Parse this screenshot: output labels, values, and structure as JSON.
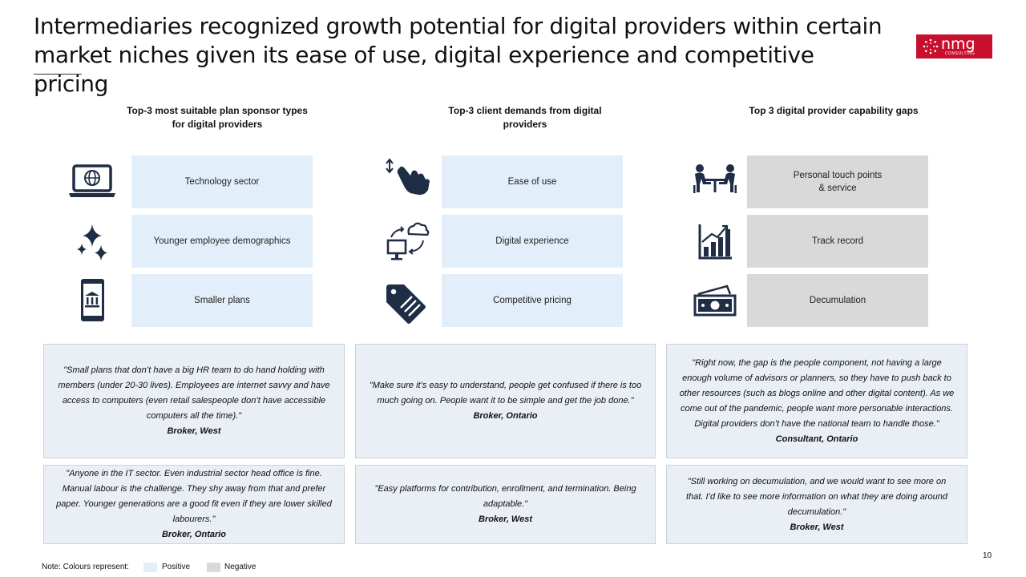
{
  "header": {
    "title_line1": "Intermediaries recognized growth potential for digital providers within certain",
    "title_line2": "market niches given its ease of use, digital experience and competitive pricing"
  },
  "logo": {
    "word": "nmg",
    "sub": "CONSULTING",
    "color": "#c8102e"
  },
  "columns": [
    {
      "heading_line1": "Top-3 most suitable plan sponsor types",
      "heading_line2": "for digital providers",
      "items": [
        {
          "label": "Technology sector",
          "icon": "laptop-globe-icon"
        },
        {
          "label": "Younger employee demographics",
          "icon": "sparkles-icon"
        },
        {
          "label": "Smaller plans",
          "icon": "phone-bank-icon"
        }
      ],
      "quotes": [
        {
          "text": "\"Small plans that don’t have a big HR team to do hand holding with members (under 20-30 lives). Employees are internet savvy and have access to computers (even retail salespeople don’t have accessible computers all the time).\"",
          "author": "Broker, West"
        },
        {
          "text": "\"Anyone in the IT sector. Even industrial sector head office is fine. Manual labour is the challenge. They shy away from that and prefer paper. Younger generations are a good fit even if they are lower skilled labourers.\"",
          "author": "Broker, Ontario"
        }
      ]
    },
    {
      "heading_line1": "Top-3 client demands from digital",
      "heading_line2": "providers",
      "items": [
        {
          "label": "Ease of use",
          "icon": "hand-tap-icon"
        },
        {
          "label": "Digital experience",
          "icon": "cloud-monitor-icon"
        },
        {
          "label": "Competitive pricing",
          "icon": "price-tag-icon"
        }
      ],
      "quotes": [
        {
          "text": "\"Make sure it’s easy to understand, people get confused if there is too much going on. People want it to be simple and get the job done.\"",
          "author": "Broker, Ontario"
        },
        {
          "text": "\"Easy platforms for contribution, enrollment, and termination. Being adaptable.\"",
          "author": "Broker, West"
        }
      ]
    },
    {
      "heading_line1": "Top 3 digital provider capability gaps",
      "heading_line2": "",
      "items": [
        {
          "label_line1": "Personal touch points",
          "label_line2": "& service",
          "icon": "meeting-table-icon"
        },
        {
          "label": "Track record",
          "icon": "bar-chart-icon"
        },
        {
          "label": "Decumulation",
          "icon": "cash-icon"
        }
      ],
      "quotes": [
        {
          "text": "\"Right now, the gap is the people component, not having a large enough volume of advisors or planners, so they have to push back to other resources (such as blogs online and other digital content). As we come out of the pandemic, people want more personable interactions. Digital providers don’t have the national team to handle those.\"",
          "author": "Consultant, Ontario"
        },
        {
          "text": "\"Still working on decumulation, and we would want to see more on that. I’d like to see more information on what they are doing around decumulation.\"",
          "author": "Broker, West"
        }
      ]
    }
  ],
  "legend": {
    "note": "Note: Colours represent:",
    "positive": "Positive",
    "negative": "Negative",
    "positive_color": "#e2effa",
    "negative_color": "#d9d9d9"
  },
  "page_number": "10",
  "icon_color": "#1f2d45"
}
